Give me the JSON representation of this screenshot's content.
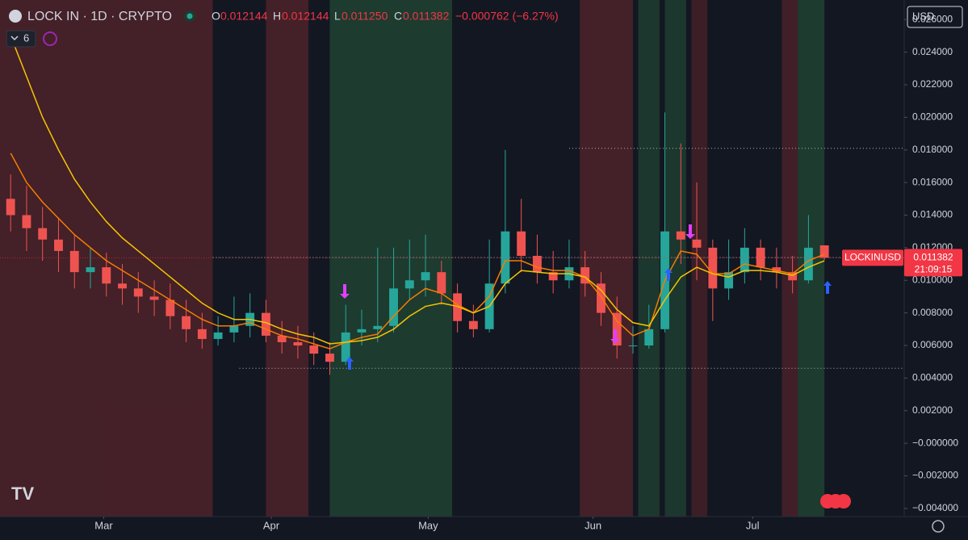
{
  "header": {
    "symbol": "LOCK IN · 1D · CRYPTO",
    "o_label": "O",
    "o_value": "0.012144",
    "h_label": "H",
    "h_value": "0.012144",
    "l_label": "L",
    "l_value": "0.011250",
    "c_label": "C",
    "c_value": "0.011382",
    "change": "−0.000762 (−6.27%)",
    "indicator_count": "6",
    "currency": "USD"
  },
  "chart_data": {
    "type": "candlestick",
    "x": [
      2,
      5,
      8,
      11,
      14,
      17,
      20,
      23,
      26,
      29,
      32,
      35,
      38,
      41,
      44,
      47,
      50,
      53,
      56,
      59,
      62,
      65,
      68,
      71,
      74,
      77,
      80,
      83,
      86,
      89,
      92,
      95,
      98,
      101,
      104,
      107,
      110,
      113,
      116,
      119,
      122,
      125,
      128,
      131,
      134,
      137,
      140,
      143,
      146,
      149,
      152,
      155
    ],
    "open": [
      0.015,
      0.014,
      0.0132,
      0.0125,
      0.0118,
      0.0105,
      0.0108,
      0.0098,
      0.0095,
      0.009,
      0.0088,
      0.0078,
      0.007,
      0.0064,
      0.0068,
      0.0072,
      0.008,
      0.0066,
      0.0062,
      0.006,
      0.0055,
      0.005,
      0.0068,
      0.007,
      0.0072,
      0.0095,
      0.01,
      0.0105,
      0.0092,
      0.0075,
      0.007,
      0.0098,
      0.013,
      0.0115,
      0.0105,
      0.01,
      0.0108,
      0.0098,
      0.008,
      0.006,
      0.006,
      0.007,
      0.013,
      0.0125,
      0.012,
      0.0095,
      0.0105,
      0.012,
      0.0108,
      0.0105,
      0.01,
      0.012144
    ],
    "high": [
      0.0165,
      0.0158,
      0.0145,
      0.0138,
      0.0128,
      0.012,
      0.0117,
      0.011,
      0.0105,
      0.01,
      0.0098,
      0.0088,
      0.008,
      0.0078,
      0.009,
      0.0092,
      0.0088,
      0.0075,
      0.0072,
      0.0068,
      0.0062,
      0.0085,
      0.0082,
      0.012,
      0.012,
      0.0125,
      0.0128,
      0.0112,
      0.0098,
      0.0085,
      0.0125,
      0.018,
      0.015,
      0.0128,
      0.0118,
      0.0125,
      0.0118,
      0.0105,
      0.009,
      0.0072,
      0.0085,
      0.0203,
      0.0184,
      0.016,
      0.0125,
      0.0125,
      0.0132,
      0.0125,
      0.012,
      0.0115,
      0.014,
      0.012144
    ],
    "low": [
      0.013,
      0.0118,
      0.0112,
      0.0105,
      0.0095,
      0.0095,
      0.009,
      0.0085,
      0.008,
      0.0078,
      0.007,
      0.0062,
      0.0058,
      0.006,
      0.0062,
      0.0065,
      0.0062,
      0.0055,
      0.0052,
      0.0048,
      0.0042,
      0.0048,
      0.006,
      0.0062,
      0.0068,
      0.0088,
      0.009,
      0.0085,
      0.0068,
      0.0065,
      0.0068,
      0.0092,
      0.0105,
      0.0098,
      0.0092,
      0.0095,
      0.009,
      0.0072,
      0.0052,
      0.0055,
      0.0058,
      0.0068,
      0.011,
      0.01,
      0.0075,
      0.0088,
      0.0098,
      0.01,
      0.0095,
      0.0092,
      0.0098,
      0.01125
    ],
    "close": [
      0.014,
      0.0132,
      0.0125,
      0.0118,
      0.0105,
      0.0108,
      0.0098,
      0.0095,
      0.009,
      0.0088,
      0.0078,
      0.007,
      0.0064,
      0.0068,
      0.0072,
      0.008,
      0.0066,
      0.0062,
      0.006,
      0.0055,
      0.005,
      0.0068,
      0.007,
      0.0072,
      0.0095,
      0.01,
      0.0105,
      0.0092,
      0.0075,
      0.007,
      0.0098,
      0.013,
      0.0115,
      0.0105,
      0.01,
      0.0108,
      0.0098,
      0.008,
      0.006,
      0.006,
      0.007,
      0.013,
      0.0125,
      0.012,
      0.0095,
      0.0105,
      0.012,
      0.0108,
      0.0105,
      0.01,
      0.012,
      0.011382
    ],
    "up_color": "#26a69a",
    "down_color": "#ef5350",
    "series": [
      {
        "color": "#f57c00",
        "values": [
          0.0178,
          0.016,
          0.0148,
          0.0138,
          0.0128,
          0.012,
          0.0112,
          0.0106,
          0.01,
          0.0094,
          0.0088,
          0.0082,
          0.0076,
          0.0072,
          0.0072,
          0.0074,
          0.007,
          0.0066,
          0.0064,
          0.0061,
          0.0058,
          0.0062,
          0.0065,
          0.0067,
          0.0078,
          0.0088,
          0.0095,
          0.0092,
          0.0085,
          0.008,
          0.009,
          0.0112,
          0.0112,
          0.0108,
          0.0106,
          0.0106,
          0.0102,
          0.009,
          0.0075,
          0.0066,
          0.007,
          0.01,
          0.0118,
          0.0116,
          0.0104,
          0.0104,
          0.011,
          0.0108,
          0.0106,
          0.0104,
          0.0112,
          0.0116
        ]
      },
      {
        "color": "#f5c400",
        "values": [
          0.025,
          0.0225,
          0.02,
          0.018,
          0.0162,
          0.0148,
          0.0136,
          0.0126,
          0.0118,
          0.011,
          0.0102,
          0.0094,
          0.0086,
          0.008,
          0.0076,
          0.0076,
          0.0074,
          0.007,
          0.0067,
          0.0065,
          0.0061,
          0.0062,
          0.0063,
          0.0065,
          0.007,
          0.0078,
          0.0084,
          0.0086,
          0.0084,
          0.008,
          0.0084,
          0.0098,
          0.0106,
          0.0105,
          0.0104,
          0.0104,
          0.0102,
          0.0094,
          0.0082,
          0.0074,
          0.0072,
          0.0088,
          0.0102,
          0.0108,
          0.0104,
          0.0102,
          0.0106,
          0.0106,
          0.0105,
          0.0103,
          0.0108,
          0.0112
        ]
      }
    ],
    "bands": [
      {
        "x": [
          0,
          40
        ],
        "color": "rgba(110,40,45,0.55)"
      },
      {
        "x": [
          50,
          58
        ],
        "color": "rgba(110,40,45,0.55)"
      },
      {
        "x": [
          62,
          85
        ],
        "color": "rgba(40,95,60,0.5)"
      },
      {
        "x": [
          109,
          119
        ],
        "color": "rgba(110,40,45,0.55)"
      },
      {
        "x": [
          120,
          124
        ],
        "color": "rgba(40,95,60,0.45)"
      },
      {
        "x": [
          125,
          129
        ],
        "color": "rgba(40,95,60,0.45)"
      },
      {
        "x": [
          130,
          133
        ],
        "color": "rgba(110,40,45,0.45)"
      },
      {
        "x": [
          147,
          150
        ],
        "color": "rgba(110,40,45,0.5)"
      },
      {
        "x": [
          150,
          155
        ],
        "color": "rgba(40,95,60,0.5)"
      }
    ],
    "levels": [
      {
        "y": 0.0181,
        "x": [
          107,
          170
        ]
      },
      {
        "y": 0.0114,
        "x": [
          40,
          170
        ]
      },
      {
        "y": 0.0046,
        "x": [
          45,
          170
        ]
      }
    ],
    "xlim": [
      0,
      170
    ],
    "ylim": [
      -0.0045,
      0.0272
    ],
    "xticks": [
      {
        "value": 19.5,
        "label": "Mar"
      },
      {
        "value": 51,
        "label": "Apr"
      },
      {
        "value": 80.5,
        "label": "May"
      },
      {
        "value": 111.5,
        "label": "Jun"
      },
      {
        "value": 141.5,
        "label": "Jul"
      }
    ],
    "yticks": [
      {
        "value": 0.026,
        "label": "0.026000"
      },
      {
        "value": 0.024,
        "label": "0.024000"
      },
      {
        "value": 0.022,
        "label": "0.022000"
      },
      {
        "value": 0.02,
        "label": "0.020000"
      },
      {
        "value": 0.018,
        "label": "0.018000"
      },
      {
        "value": 0.016,
        "label": "0.016000"
      },
      {
        "value": 0.014,
        "label": "0.014000"
      },
      {
        "value": 0.012,
        "label": "0.012000"
      },
      {
        "value": 0.01,
        "label": "0.010000"
      },
      {
        "value": 0.008,
        "label": "0.008000"
      },
      {
        "value": 0.006,
        "label": "0.006000"
      },
      {
        "value": 0.004,
        "label": "0.004000"
      },
      {
        "value": 0.002,
        "label": "0.002000"
      },
      {
        "value": 0,
        "label": "−0.000000"
      },
      {
        "value": -0.002,
        "label": "−0.002000"
      },
      {
        "value": -0.004,
        "label": "−0.004000"
      }
    ],
    "price_label": {
      "name": "LOCKINUSD",
      "value": 0.011382,
      "countdown": "21:09:15",
      "color": "#f23645"
    }
  }
}
